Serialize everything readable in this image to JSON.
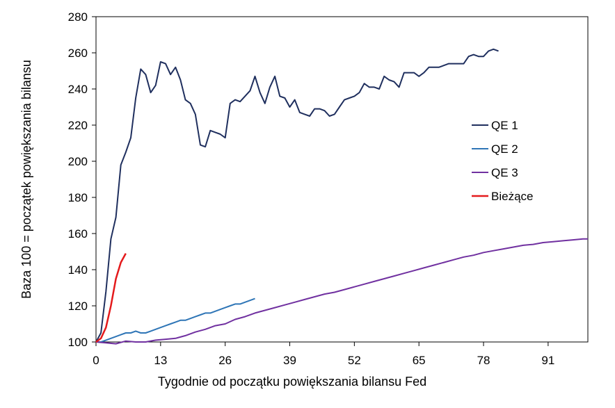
{
  "chart_data": {
    "type": "line",
    "title": "",
    "xlabel": "Tygodnie od początku powiększania bilansu Fed",
    "ylabel": "Baza 100 = początek powiększania bilansu",
    "xlim": [
      0,
      99
    ],
    "ylim": [
      100,
      280
    ],
    "x_ticks": [
      "0",
      "13",
      "26",
      "39",
      "52",
      "65",
      "78",
      "91"
    ],
    "x_tick_values": [
      0,
      13,
      26,
      39,
      52,
      65,
      78,
      91
    ],
    "y_ticks": [
      "100",
      "120",
      "140",
      "160",
      "180",
      "200",
      "220",
      "240",
      "260",
      "280"
    ],
    "y_tick_values": [
      100,
      120,
      140,
      160,
      180,
      200,
      220,
      240,
      260,
      280
    ],
    "grid": false,
    "legend_position": "right",
    "series": [
      {
        "name": "QE 1",
        "color": "#1f2f5e",
        "x": [
          0,
          1,
          2,
          3,
          4,
          5,
          6,
          7,
          8,
          9,
          10,
          11,
          12,
          13,
          14,
          15,
          16,
          17,
          18,
          19,
          20,
          21,
          22,
          23,
          24,
          25,
          26,
          27,
          28,
          29,
          30,
          31,
          32,
          33,
          34,
          35,
          36,
          37,
          38,
          39,
          40,
          41,
          42,
          43,
          44,
          45,
          46,
          47,
          48,
          49,
          50,
          51,
          52,
          53,
          54,
          55,
          56,
          57,
          58,
          59,
          60,
          61,
          62,
          63,
          64,
          65,
          66,
          67,
          68,
          69,
          70,
          71,
          72,
          73,
          74,
          75,
          76,
          77,
          78,
          79,
          80,
          81
        ],
        "values": [
          100,
          105,
          128,
          157,
          169,
          198,
          205,
          213,
          235,
          251,
          248,
          238,
          242,
          255,
          254,
          248,
          252,
          245,
          234,
          232,
          226,
          209,
          208,
          217,
          216,
          215,
          213,
          232,
          234,
          233,
          236,
          239,
          247,
          238,
          232,
          241,
          247,
          236,
          235,
          230,
          234,
          227,
          226,
          225,
          229,
          229,
          228,
          225,
          226,
          230,
          234,
          235,
          236,
          238,
          243,
          241,
          241,
          240,
          247,
          245,
          244,
          241,
          249,
          249,
          249,
          247,
          249,
          252,
          252,
          252,
          253,
          254,
          254,
          254,
          254,
          258,
          259,
          258,
          258,
          261,
          262,
          261
        ]
      },
      {
        "name": "QE 2",
        "color": "#2e75b6",
        "x": [
          0,
          1,
          2,
          3,
          4,
          5,
          6,
          7,
          8,
          9,
          10,
          11,
          12,
          13,
          14,
          15,
          16,
          17,
          18,
          19,
          20,
          21,
          22,
          23,
          24,
          25,
          26,
          27,
          28,
          29,
          30,
          31,
          32
        ],
        "values": [
          100,
          100,
          101,
          102,
          103,
          104,
          105,
          105,
          106,
          105,
          105,
          106,
          107,
          108,
          109,
          110,
          111,
          112,
          112,
          113,
          114,
          115,
          116,
          116,
          117,
          118,
          119,
          120,
          121,
          121,
          122,
          123,
          124
        ]
      },
      {
        "name": "QE 3",
        "color": "#7030a0",
        "x": [
          0,
          2,
          4,
          6,
          8,
          10,
          12,
          14,
          16,
          18,
          20,
          22,
          24,
          26,
          28,
          30,
          32,
          34,
          36,
          38,
          40,
          42,
          44,
          46,
          48,
          50,
          52,
          54,
          56,
          58,
          60,
          62,
          64,
          66,
          68,
          70,
          72,
          74,
          76,
          78,
          80,
          82,
          84,
          86,
          88,
          90,
          92,
          94,
          96,
          98,
          99
        ],
        "values": [
          100,
          99.5,
          99,
          100.5,
          100,
          100,
          101,
          101.5,
          102,
          103.5,
          105.5,
          107,
          109,
          110,
          112.5,
          114,
          116,
          117.5,
          119,
          120.5,
          122,
          123.5,
          125,
          126.5,
          127.5,
          129,
          130.5,
          132,
          133.5,
          135,
          136.5,
          138,
          139.5,
          141,
          142.5,
          144,
          145.5,
          147,
          148,
          149.5,
          150.5,
          151.5,
          152.5,
          153.5,
          154,
          155,
          155.5,
          156,
          156.5,
          157,
          157
        ]
      },
      {
        "name": "Bieżące",
        "color": "#e41a1c",
        "x": [
          0,
          1,
          2,
          3,
          4,
          5,
          6
        ],
        "values": [
          100,
          102,
          108,
          120,
          135,
          144,
          149
        ]
      }
    ]
  }
}
